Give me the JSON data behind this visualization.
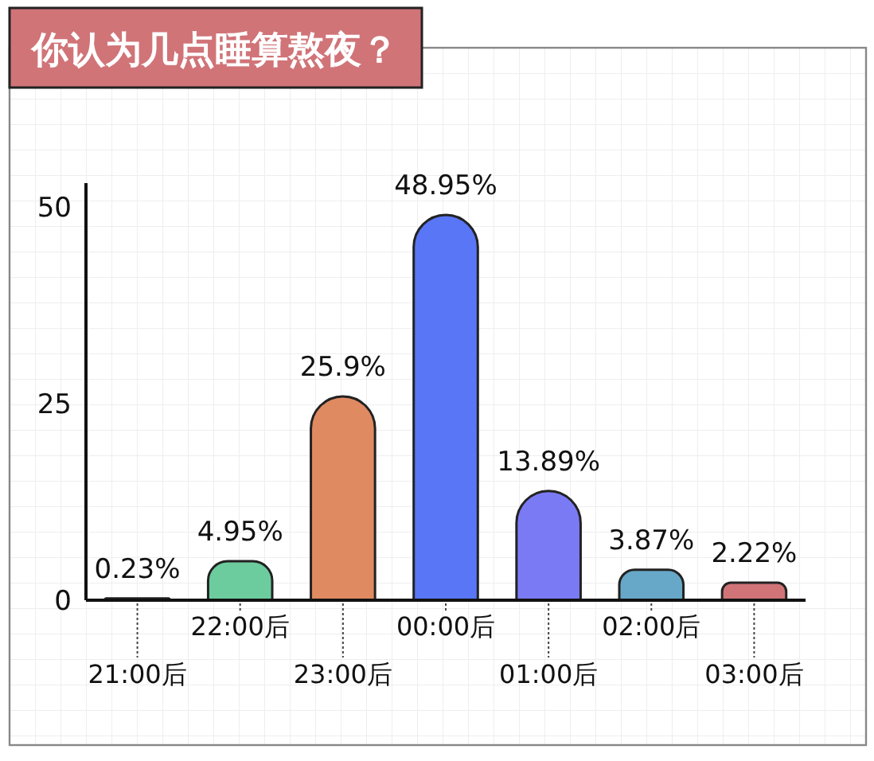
{
  "chart_data": {
    "type": "bar",
    "title": "你认为几点睡算熬夜？",
    "categories": [
      "21:00后",
      "22:00后",
      "23:00后",
      "00:00后",
      "01:00后",
      "02:00后",
      "03:00后"
    ],
    "values": [
      0.23,
      4.95,
      25.9,
      48.95,
      13.89,
      3.87,
      2.22
    ],
    "colors": [
      "#d9d9d9",
      "#6dcc9e",
      "#e08a62",
      "#5876f5",
      "#7b7af5",
      "#67a8c8",
      "#d07478"
    ],
    "value_labels": [
      "0.23%",
      "4.95%",
      "25.9%",
      "48.95%",
      "13.89%",
      "3.87%",
      "2.22%"
    ],
    "ylim": [
      0,
      53
    ],
    "yticks": [
      0,
      25,
      50
    ]
  }
}
